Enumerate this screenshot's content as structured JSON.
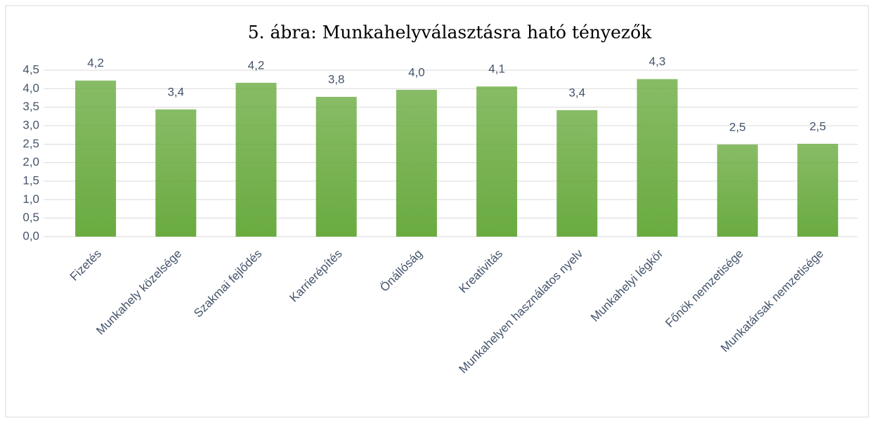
{
  "chart_data": {
    "type": "bar",
    "title": "5. ábra: Munkahelyválasztásra ható tényezők",
    "categories": [
      "Fizetés",
      "Munkahely közelsége",
      "Szakmai fejlődés",
      "Karrierépítés",
      "Önállóság",
      "Kreativitás",
      "Munkahelyen használatos nyelv",
      "Munkahelyi légkör",
      "Főnök nemzetisége",
      "Munkatársak nemzetisége"
    ],
    "values": [
      4.22,
      3.44,
      4.16,
      3.78,
      3.97,
      4.06,
      3.42,
      4.26,
      2.49,
      2.51
    ],
    "value_labels": [
      "4,2",
      "3,4",
      "4,2",
      "3,8",
      "4,0",
      "4,1",
      "3,4",
      "4,3",
      "2,5",
      "2,5"
    ],
    "color": "#6aab40",
    "ylim": [
      0,
      4.5
    ],
    "yticks": [
      {
        "value": 0,
        "label": "0,0"
      },
      {
        "value": 0.5,
        "label": "0,5"
      },
      {
        "value": 1,
        "label": "1,0"
      },
      {
        "value": 1.5,
        "label": "1,5"
      },
      {
        "value": 2,
        "label": "2,0"
      },
      {
        "value": 2.5,
        "label": "2,5"
      },
      {
        "value": 3,
        "label": "3,0"
      },
      {
        "value": 3.5,
        "label": "3,5"
      },
      {
        "value": 4,
        "label": "4,0"
      },
      {
        "value": 4.5,
        "label": "4,5"
      }
    ],
    "grid": true
  }
}
